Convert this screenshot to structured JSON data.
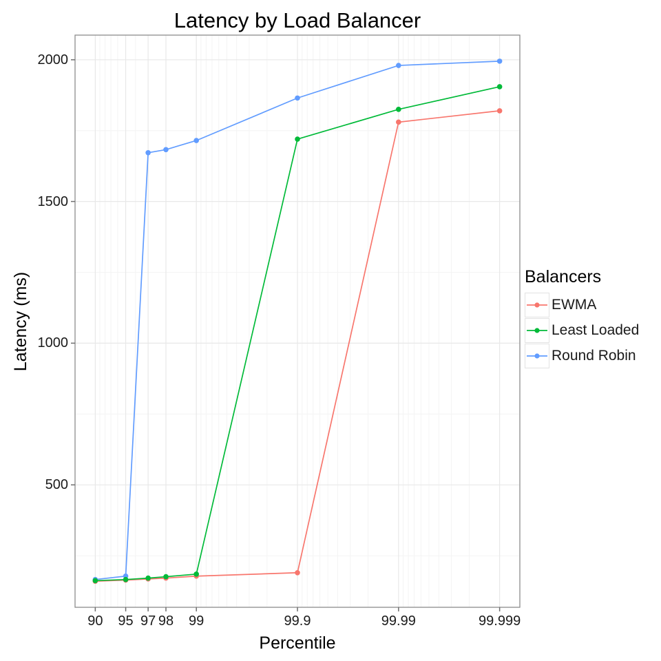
{
  "chart_data": {
    "type": "line",
    "title": "Latency by Load Balancer",
    "xlabel": "Percentile",
    "ylabel": "Latency (ms)",
    "legend_title": "Balancers",
    "legend_position": "right",
    "grid": true,
    "panel_background": "#ffffff",
    "x_scale": "log10(100 - percentile), tail percentiles stretch rightward",
    "x": [
      90,
      95,
      97,
      98,
      99,
      99.9,
      99.99,
      99.999
    ],
    "x_tick_labels": [
      "90",
      "95",
      "97",
      "98",
      "99",
      "99.9",
      "99.99",
      "99.999"
    ],
    "y_ticks": [
      500,
      1000,
      1500,
      2000
    ],
    "y_tick_labels": [
      "500",
      "1000",
      "1500",
      "2000"
    ],
    "x_minor_ticks": [
      91,
      92,
      93,
      94,
      96,
      99.1,
      99.2,
      99.3,
      99.4,
      99.5,
      99.6,
      99.7,
      99.8,
      99.91,
      99.92,
      99.93,
      99.94,
      99.95,
      99.96,
      99.97,
      99.98,
      99.991,
      99.992,
      99.993,
      99.994,
      99.995,
      99.996,
      99.997,
      99.998
    ],
    "y_minor_ticks": [
      250,
      750,
      1250,
      1750
    ],
    "axis": {
      "x_range_t": [
        -1.2,
        3.2
      ],
      "y_range": [
        68,
        2087
      ]
    },
    "series": [
      {
        "name": "EWMA",
        "color": "#F8766D",
        "values": [
          160,
          164,
          168,
          171,
          178,
          190,
          1780,
          1820
        ]
      },
      {
        "name": "Least Loaded",
        "color": "#00BA38",
        "values": [
          162,
          166,
          171,
          176,
          185,
          1720,
          1825,
          1905
        ]
      },
      {
        "name": "Round Robin",
        "color": "#619CFF",
        "values": [
          166,
          178,
          1672,
          1683,
          1715,
          1865,
          1980,
          1995
        ]
      }
    ]
  },
  "colors": {
    "panel_border": "#8c8c8c",
    "grid_major": "#e8e8e8",
    "grid_minor": "#f4f4f4",
    "axis_tick": "#6e6e6e",
    "text": "#1a1a1a",
    "background": "#ffffff"
  }
}
